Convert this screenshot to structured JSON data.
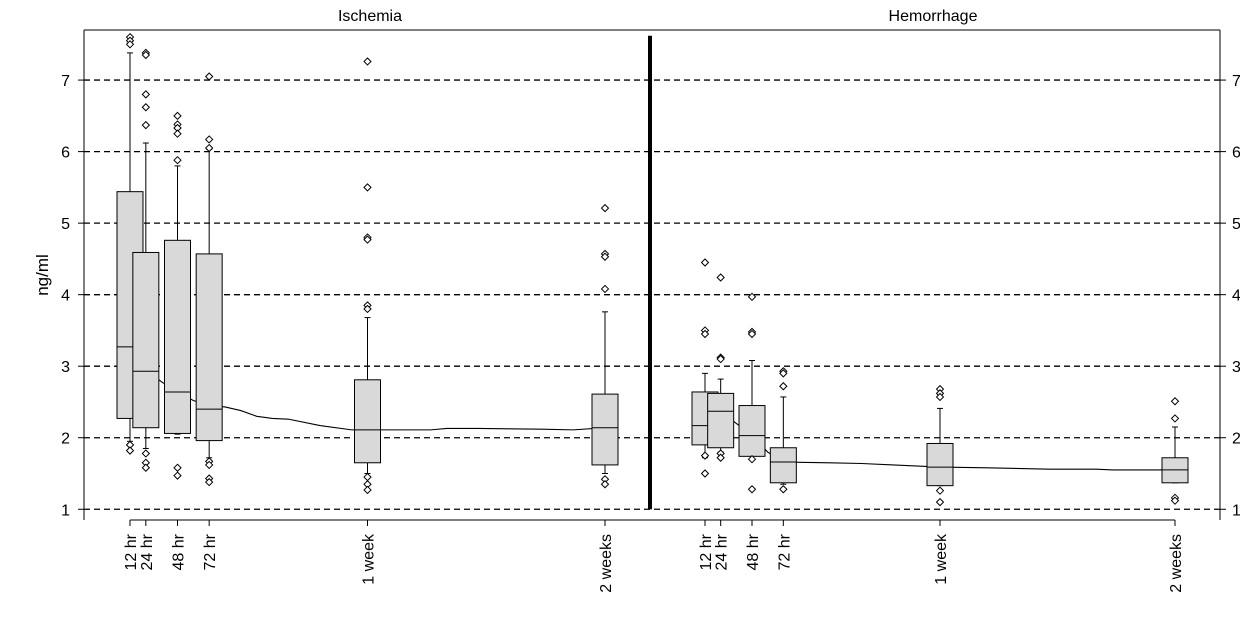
{
  "chart_data": {
    "type": "boxplot",
    "ylabel": "ng/ml",
    "ylim": [
      0.85,
      7.7
    ],
    "yticks": [
      1,
      2,
      3,
      4,
      5,
      6,
      7
    ],
    "grid": "dashed horizontal",
    "colors": {
      "box_fill": "#d9d9d9",
      "line": "#000000",
      "grid": "#000000"
    },
    "panels": [
      {
        "title": "Ischemia",
        "groups": [
          {
            "label": "12 hr",
            "xpos": 0,
            "stats": [
              1.95,
              2.27,
              3.27,
              5.44,
              7.38
            ],
            "outliers": [
              7.6,
              7.55,
              7.5,
              1.9,
              1.82
            ]
          },
          {
            "label": "24 hr",
            "xpos": 1,
            "stats": [
              1.85,
              2.14,
              2.93,
              4.59,
              6.12
            ],
            "outliers": [
              7.38,
              7.35,
              6.8,
              6.62,
              6.37,
              1.78,
              1.65,
              1.58
            ]
          },
          {
            "label": "48 hr",
            "xpos": 3,
            "stats": [
              2.05,
              2.06,
              2.64,
              4.76,
              5.8
            ],
            "outliers": [
              6.5,
              6.38,
              6.33,
              6.25,
              5.88,
              1.58,
              1.47
            ]
          },
          {
            "label": "72 hr",
            "xpos": 5,
            "stats": [
              1.72,
              1.96,
              2.4,
              4.57,
              6.03
            ],
            "outliers": [
              7.05,
              6.17,
              6.05,
              1.67,
              1.62,
              1.43,
              1.38
            ]
          },
          {
            "label": "1 week",
            "xpos": 15,
            "stats": [
              1.5,
              1.65,
              2.11,
              2.81,
              3.68
            ],
            "outliers": [
              7.26,
              5.5,
              4.8,
              4.77,
              3.85,
              3.8,
              1.45,
              1.35,
              1.27
            ]
          },
          {
            "label": "2 weeks",
            "xpos": 30,
            "stats": [
              1.5,
              1.62,
              2.14,
              2.61,
              3.76
            ],
            "outliers": [
              5.21,
              4.57,
              4.53,
              4.08,
              1.42,
              1.35
            ]
          }
        ],
        "trend": [
          [
            0,
            3.27
          ],
          [
            1,
            2.95
          ],
          [
            2,
            2.78
          ],
          [
            3,
            2.64
          ],
          [
            4,
            2.52
          ],
          [
            5,
            2.45
          ],
          [
            6,
            2.43
          ],
          [
            7,
            2.38
          ],
          [
            8,
            2.3
          ],
          [
            9,
            2.27
          ],
          [
            10,
            2.26
          ],
          [
            12,
            2.17
          ],
          [
            14,
            2.11
          ],
          [
            17,
            2.11
          ],
          [
            19,
            2.11
          ],
          [
            20,
            2.13
          ],
          [
            22,
            2.13
          ],
          [
            26,
            2.12
          ],
          [
            28,
            2.11
          ],
          [
            30,
            2.14
          ]
        ]
      },
      {
        "title": "Hemorrhage",
        "groups": [
          {
            "label": "12 hr",
            "xpos": 0,
            "stats": [
              1.72,
              1.9,
              2.17,
              2.64,
              2.9
            ],
            "outliers": [
              4.45,
              3.5,
              3.45,
              1.75,
              1.5
            ]
          },
          {
            "label": "24 hr",
            "xpos": 1,
            "stats": [
              1.8,
              1.86,
              2.37,
              2.62,
              2.82
            ],
            "outliers": [
              4.24,
              3.12,
              3.1,
              1.78,
              1.72
            ]
          },
          {
            "label": "48 hr",
            "xpos": 3,
            "stats": [
              1.7,
              1.74,
              2.03,
              2.45,
              3.08
            ],
            "outliers": [
              3.97,
              3.48,
              3.45,
              1.7,
              1.28
            ]
          },
          {
            "label": "72 hr",
            "xpos": 5,
            "stats": [
              1.35,
              1.37,
              1.66,
              1.86,
              2.57
            ],
            "outliers": [
              2.93,
              2.9,
              2.72,
              1.28
            ]
          },
          {
            "label": "1 week",
            "xpos": 15,
            "stats": [
              1.33,
              1.33,
              1.59,
              1.92,
              2.41
            ],
            "outliers": [
              2.68,
              2.62,
              2.57,
              1.26,
              1.1
            ]
          },
          {
            "label": "2 weeks",
            "xpos": 30,
            "stats": [
              1.37,
              1.37,
              1.55,
              1.72,
              2.15
            ],
            "outliers": [
              2.51,
              2.27,
              1.16,
              1.12
            ]
          }
        ],
        "trend": [
          [
            0,
            2.17
          ],
          [
            1,
            2.37
          ],
          [
            2,
            2.2
          ],
          [
            3,
            2.03
          ],
          [
            4,
            1.8
          ],
          [
            5,
            1.66
          ],
          [
            8,
            1.65
          ],
          [
            10,
            1.64
          ],
          [
            12,
            1.62
          ],
          [
            15,
            1.59
          ],
          [
            18,
            1.58
          ],
          [
            22,
            1.56
          ],
          [
            25,
            1.56
          ],
          [
            26,
            1.55
          ],
          [
            30,
            1.55
          ]
        ]
      }
    ]
  }
}
